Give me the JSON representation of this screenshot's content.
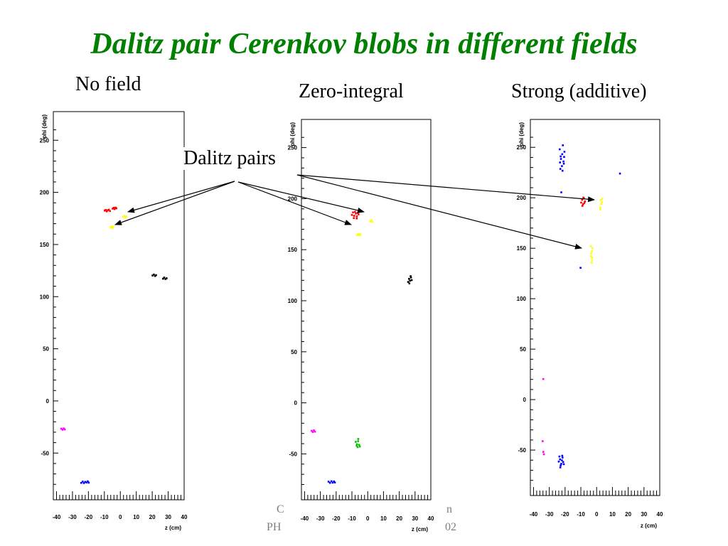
{
  "slide": {
    "title": "Dalitz pair Cerenkov blobs in different fields",
    "annotation": "Dalitz pairs",
    "footer_left_fragments": [
      "C",
      "PH"
    ],
    "footer_right_fragments": [
      "n",
      "02"
    ]
  },
  "colors": {
    "title": "#008000",
    "red": "#ff0000",
    "yellow": "#ffff00",
    "black": "#000000",
    "magenta": "#ff00ff",
    "blue": "#0000ff",
    "green": "#00c000"
  },
  "chart_data": [
    {
      "type": "scatter",
      "panel_label": "No field",
      "xlabel": "z (cm)",
      "ylabel": "phi (deg)",
      "xlim": [
        -42,
        40
      ],
      "ylim": [
        -88,
        272
      ],
      "x_ticks": [
        "-40",
        "-30",
        "-20",
        "-10",
        "0",
        "10",
        "20",
        "30",
        "40"
      ],
      "y_ticks": [
        "-50",
        "0",
        "50",
        "100",
        "150",
        "200",
        "250"
      ],
      "grid": false,
      "series": [
        {
          "color": "red",
          "points": [
            [
              -9.8,
              182.5
            ],
            [
              -9.2,
              183.2
            ],
            [
              -8.5,
              181.8
            ],
            [
              -7.9,
              182.9
            ],
            [
              -7.2,
              183.4
            ],
            [
              -6.5,
              182.1
            ],
            [
              -4.8,
              184.4
            ],
            [
              -4.2,
              185.2
            ],
            [
              -3.6,
              184.0
            ],
            [
              -3.0,
              185.4
            ],
            [
              -2.5,
              184.7
            ]
          ]
        },
        {
          "color": "yellow",
          "points": [
            [
              1.8,
              176.6
            ],
            [
              2.5,
              177.4
            ],
            [
              3.2,
              176.1
            ],
            [
              3.8,
              177.0
            ],
            [
              -6.2,
              166.4
            ],
            [
              -5.6,
              167.3
            ],
            [
              -5.0,
              166.0
            ],
            [
              -4.4,
              167.0
            ]
          ]
        },
        {
          "color": "black",
          "points": [
            [
              20.2,
              120.3
            ],
            [
              21.0,
              121.2
            ],
            [
              21.8,
              119.8
            ],
            [
              22.4,
              120.6
            ],
            [
              26.8,
              117.2
            ],
            [
              27.5,
              118.3
            ],
            [
              28.3,
              116.9
            ],
            [
              29.0,
              117.6
            ]
          ]
        },
        {
          "color": "magenta",
          "points": [
            [
              -37.0,
              -26.6
            ],
            [
              -36.2,
              -27.6
            ],
            [
              -35.5,
              -26.4
            ],
            [
              -34.8,
              -27.3
            ]
          ]
        },
        {
          "color": "blue",
          "points": [
            [
              -24.5,
              -78.6
            ],
            [
              -23.6,
              -77.4
            ],
            [
              -22.8,
              -78.8
            ],
            [
              -22.0,
              -77.6
            ],
            [
              -21.2,
              -78.2
            ],
            [
              -20.4,
              -77.1
            ],
            [
              -19.8,
              -78.4
            ]
          ]
        }
      ]
    },
    {
      "type": "scatter",
      "panel_label": "Zero-integral",
      "xlabel": "z (cm)",
      "ylabel": "phi (deg)",
      "xlim": [
        -42,
        40
      ],
      "ylim": [
        -88,
        272
      ],
      "x_ticks": [
        "-40",
        "-30",
        "-20",
        "-10",
        "0",
        "10",
        "20",
        "30",
        "40"
      ],
      "y_ticks": [
        "-50",
        "0",
        "50",
        "100",
        "150",
        "200",
        "250"
      ],
      "grid": false,
      "series": [
        {
          "color": "red",
          "points": [
            [
              -10.0,
              184.0
            ],
            [
              -9.3,
              186.5
            ],
            [
              -8.6,
              183.2
            ],
            [
              -8.0,
              187.1
            ],
            [
              -7.5,
              185.4
            ],
            [
              -6.9,
              182.6
            ],
            [
              -6.3,
              186.0
            ],
            [
              -5.8,
              184.6
            ],
            [
              -5.2,
              187.8
            ],
            [
              -8.8,
              181.0
            ],
            [
              -7.0,
              180.6
            ]
          ]
        },
        {
          "color": "yellow",
          "points": [
            [
              1.6,
              177.8
            ],
            [
              2.3,
              178.8
            ],
            [
              3.0,
              177.4
            ],
            [
              -6.6,
              164.2
            ],
            [
              -5.9,
              165.4
            ],
            [
              -5.2,
              164.0
            ],
            [
              -4.6,
              165.0
            ]
          ]
        },
        {
          "color": "black",
          "points": [
            [
              25.6,
              118.4
            ],
            [
              26.2,
              121.4
            ],
            [
              26.8,
              119.6
            ],
            [
              27.4,
              122.8
            ],
            [
              27.9,
              120.2
            ],
            [
              26.4,
              117.0
            ],
            [
              27.2,
              124.0
            ]
          ]
        },
        {
          "color": "green",
          "points": [
            [
              -7.6,
              -38.2
            ],
            [
              -6.8,
              -40.6
            ],
            [
              -6.1,
              -37.6
            ],
            [
              -5.4,
              -41.2
            ],
            [
              -6.4,
              -43.4
            ],
            [
              -5.0,
              -42.8
            ],
            [
              -7.0,
              -42.0
            ],
            [
              -6.0,
              -35.4
            ]
          ]
        },
        {
          "color": "magenta",
          "points": [
            [
              -35.5,
              -27.4
            ],
            [
              -34.8,
              -28.6
            ],
            [
              -34.1,
              -27.0
            ],
            [
              -33.4,
              -28.2
            ]
          ]
        },
        {
          "color": "blue",
          "points": [
            [
              -24.8,
              -77.2
            ],
            [
              -23.9,
              -78.4
            ],
            [
              -23.0,
              -76.8
            ],
            [
              -22.2,
              -78.2
            ],
            [
              -21.4,
              -77.0
            ],
            [
              -20.8,
              -78.0
            ]
          ]
        }
      ]
    },
    {
      "type": "scatter",
      "panel_label": "Strong (additive)",
      "xlabel": "z (cm)",
      "ylabel": "phi (deg)",
      "xlim": [
        -42,
        40
      ],
      "ylim": [
        -88,
        272
      ],
      "x_ticks": [
        "-40",
        "-30",
        "-20",
        "-10",
        "0",
        "10",
        "20",
        "30",
        "40"
      ],
      "y_ticks": [
        "-50",
        "0",
        "50",
        "100",
        "150",
        "200",
        "250"
      ],
      "grid": false,
      "series": [
        {
          "color": "blue",
          "points": [
            [
              -23.4,
              248.0
            ],
            [
              -22.6,
              238.5
            ],
            [
              -21.8,
              243.2
            ],
            [
              -21.0,
              236.0
            ],
            [
              -22.0,
              231.4
            ],
            [
              -20.4,
              245.6
            ],
            [
              -23.0,
              228.6
            ],
            [
              -21.4,
              252.0
            ],
            [
              -22.8,
              241.0
            ],
            [
              -20.8,
              233.8
            ],
            [
              -21.6,
              226.8
            ],
            [
              -22.4,
              205.4
            ],
            [
              -23.2,
              235.0
            ],
            [
              -20.6,
              240.5
            ],
            [
              14.8,
              224.0
            ],
            [
              -24.0,
              -61.4
            ],
            [
              -23.2,
              -59.2
            ],
            [
              -22.4,
              -63.6
            ],
            [
              -21.6,
              -57.4
            ],
            [
              -22.8,
              -65.2
            ],
            [
              -21.2,
              -61.8
            ],
            [
              -23.6,
              -56.4
            ],
            [
              -22.0,
              -60.2
            ],
            [
              -20.8,
              -64.0
            ],
            [
              -23.0,
              -67.2
            ],
            [
              -21.8,
              -55.6
            ],
            [
              -10.2,
              130.6
            ]
          ]
        },
        {
          "color": "red",
          "points": [
            [
              -9.8,
              195.2
            ],
            [
              -9.2,
              198.0
            ],
            [
              -8.6,
              193.6
            ],
            [
              -8.0,
              199.4
            ],
            [
              -7.4,
              196.4
            ],
            [
              -9.0,
              192.0
            ],
            [
              -7.8,
              194.8
            ],
            [
              -8.4,
              200.2
            ]
          ]
        },
        {
          "color": "yellow",
          "points": [
            [
              2.2,
              190.2
            ],
            [
              2.6,
              197.8
            ],
            [
              3.0,
              193.8
            ],
            [
              3.6,
              199.0
            ],
            [
              2.4,
              188.6
            ],
            [
              3.2,
              195.6
            ],
            [
              -3.6,
              152.0
            ],
            [
              -3.0,
              147.0
            ],
            [
              -3.6,
              142.0
            ],
            [
              -3.0,
              137.8
            ],
            [
              -2.6,
              150.0
            ],
            [
              -3.4,
              144.8
            ],
            [
              -2.8,
              140.6
            ],
            [
              -3.2,
              135.6
            ]
          ]
        },
        {
          "color": "magenta",
          "points": [
            [
              -33.8,
              20.4
            ],
            [
              -34.2,
              -41.2
            ],
            [
              -33.8,
              -51.8
            ],
            [
              -33.4,
              -54.2
            ]
          ]
        }
      ]
    }
  ]
}
